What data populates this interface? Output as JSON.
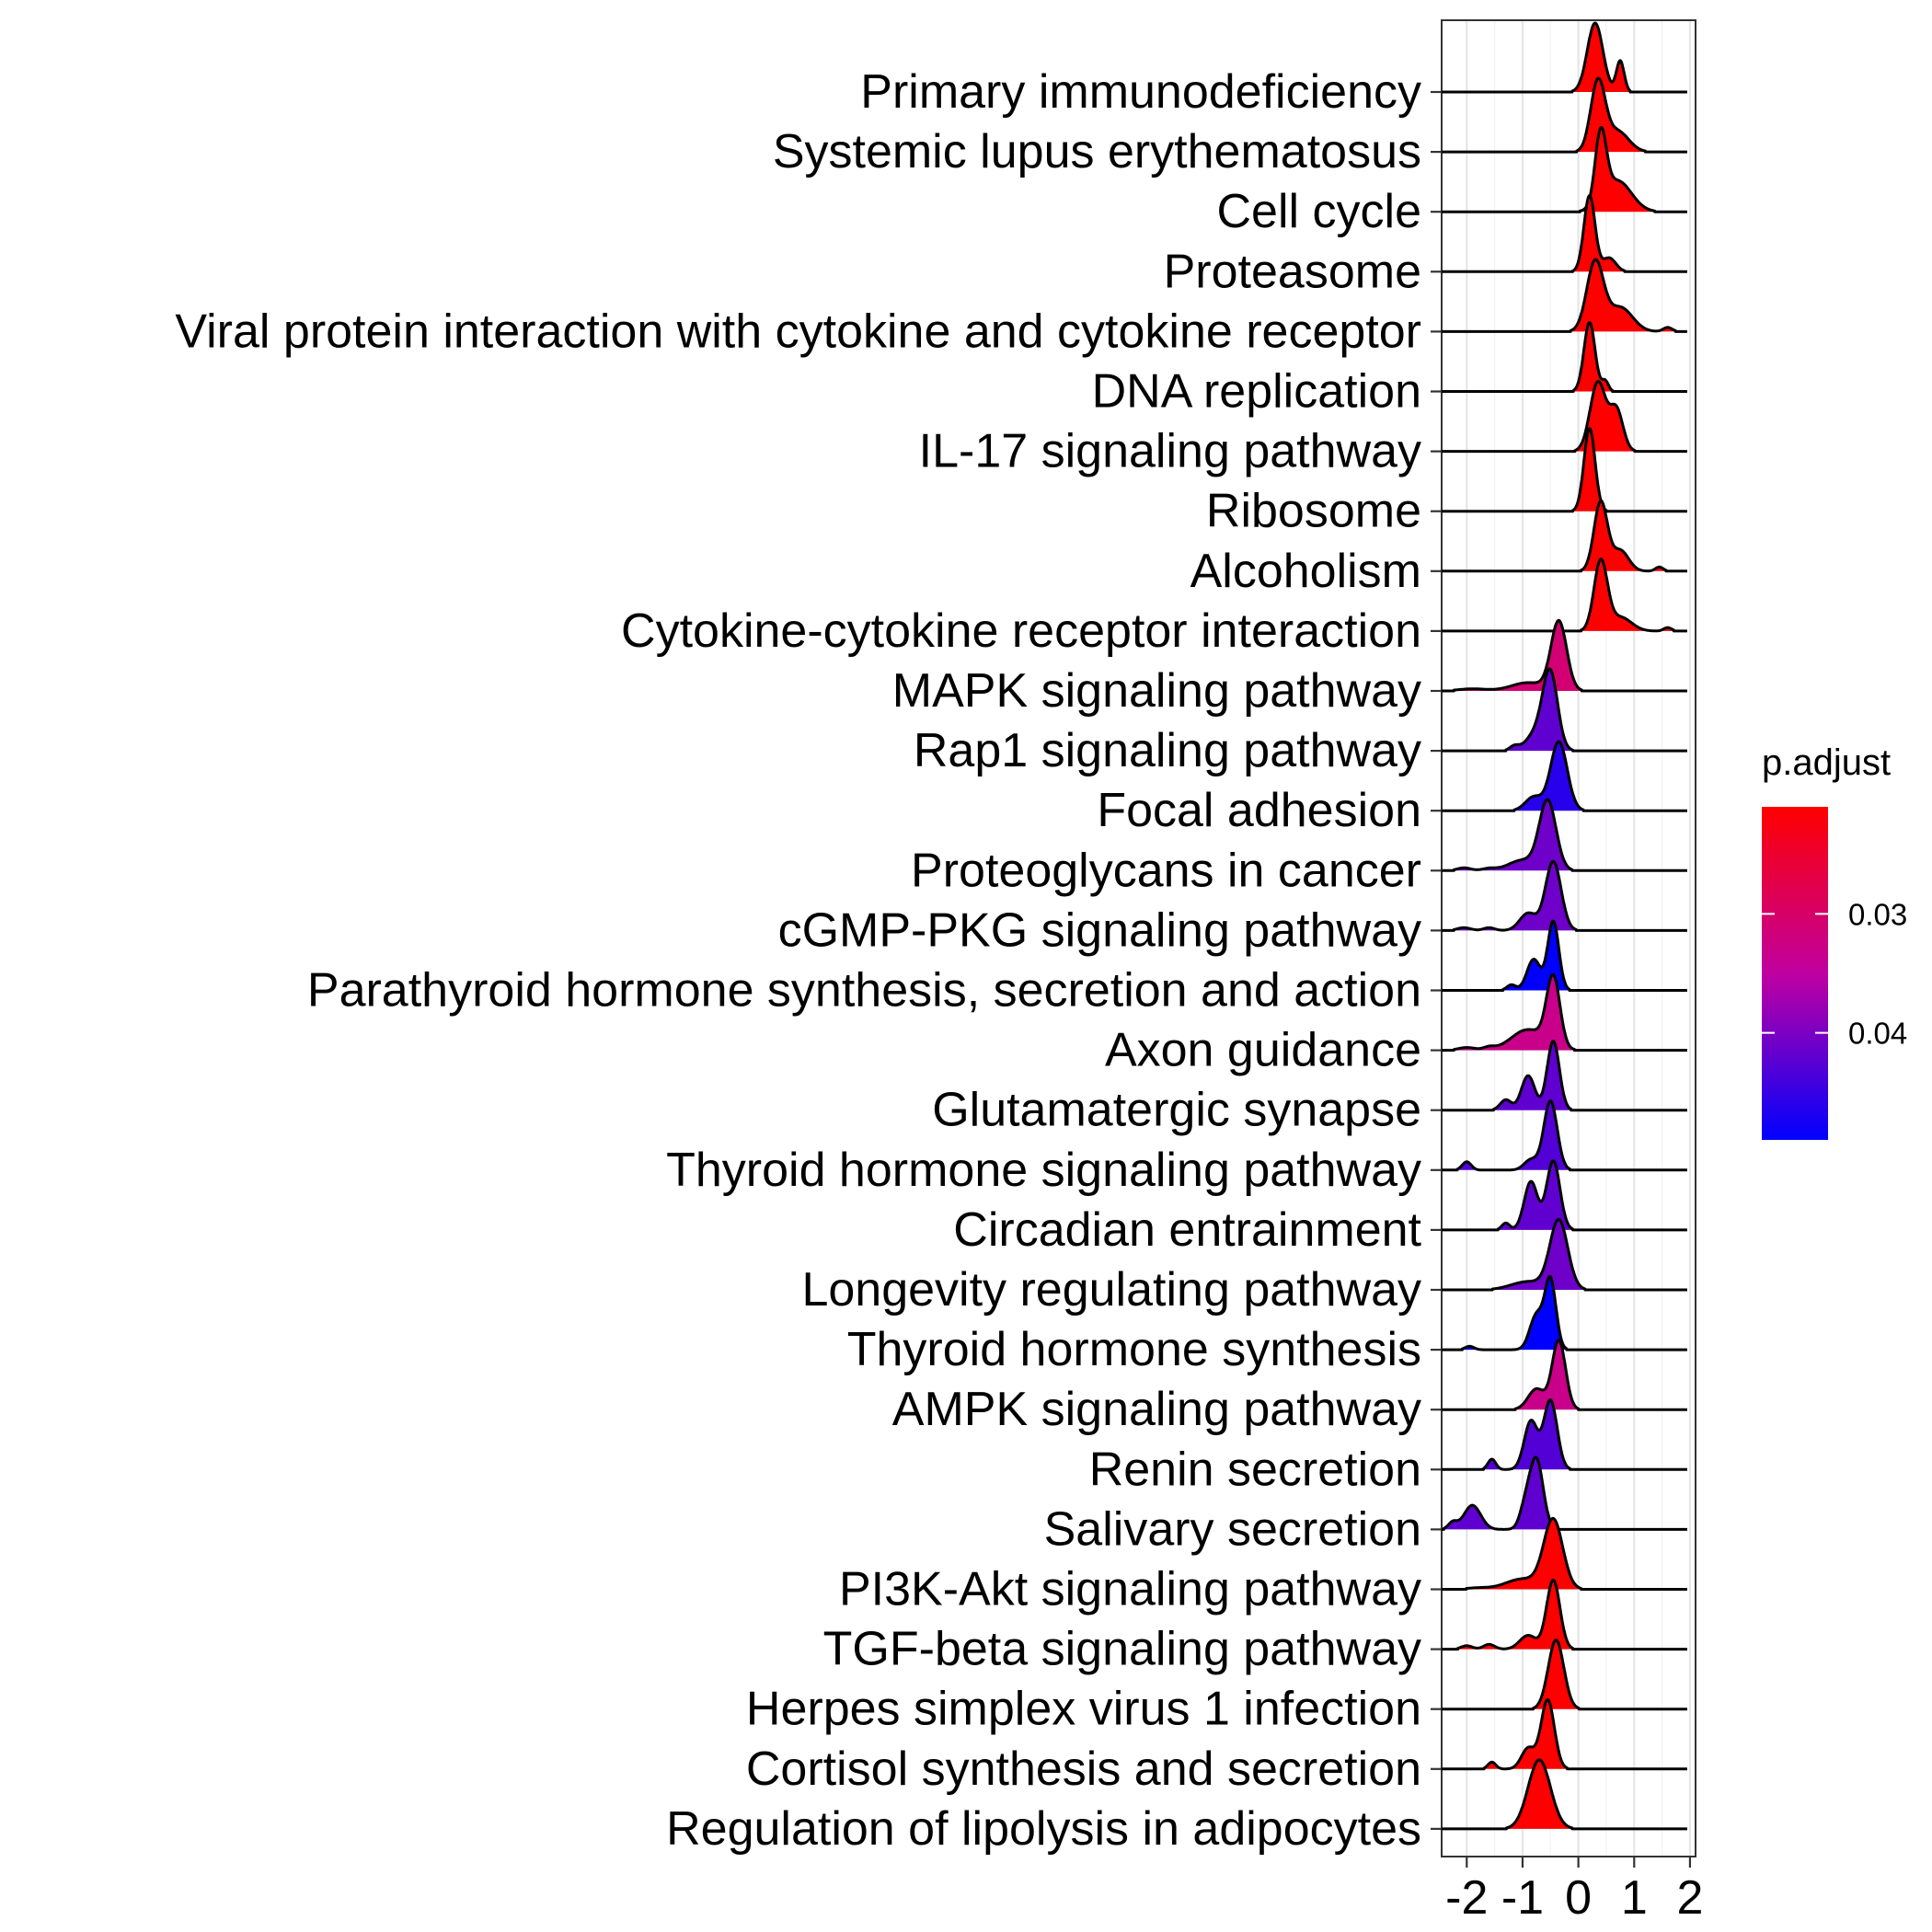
{
  "chart_data": {
    "type": "ridgeline",
    "title": "",
    "xlabel": "",
    "ylabel": "",
    "xlim": [
      -2.45,
      2.1
    ],
    "x_ticks": [
      -2,
      -1,
      0,
      1,
      2
    ],
    "x_tick_labels": [
      "-2",
      "-1",
      "0",
      "1",
      "2"
    ],
    "grid": true,
    "legend": {
      "title": "p.adjust",
      "position": "right",
      "range": [
        0.021,
        0.049
      ],
      "ticks": [
        0.03,
        0.04
      ],
      "tick_labels": [
        "0.03",
        "0.04"
      ],
      "low_color": "#FF0000",
      "high_color": "#0000FF"
    },
    "series": [
      {
        "name": "Primary immunodeficiency",
        "p_adjust": 0.021,
        "peaks": [
          [
            0.3,
            0.14,
            1.0
          ],
          [
            0.75,
            0.07,
            0.45
          ]
        ]
      },
      {
        "name": "Systemic lupus erythematosus",
        "p_adjust": 0.021,
        "peaks": [
          [
            0.35,
            0.13,
            1.0
          ],
          [
            0.7,
            0.2,
            0.3
          ]
        ]
      },
      {
        "name": "Cell cycle",
        "p_adjust": 0.021,
        "peaks": [
          [
            0.4,
            0.1,
            1.0
          ],
          [
            0.7,
            0.25,
            0.45
          ]
        ]
      },
      {
        "name": "Proteasome",
        "p_adjust": 0.021,
        "peaks": [
          [
            0.2,
            0.1,
            1.1
          ],
          [
            0.55,
            0.12,
            0.2
          ]
        ]
      },
      {
        "name": "Viral protein interaction with cytokine and cytokine receptor",
        "p_adjust": 0.021,
        "peaks": [
          [
            0.3,
            0.15,
            1.0
          ],
          [
            0.75,
            0.22,
            0.35
          ],
          [
            1.6,
            0.08,
            0.06
          ]
        ]
      },
      {
        "name": "DNA replication",
        "p_adjust": 0.021,
        "peaks": [
          [
            0.2,
            0.1,
            1.0
          ],
          [
            0.48,
            0.06,
            0.15
          ]
        ]
      },
      {
        "name": "IL-17 signaling pathway",
        "p_adjust": 0.021,
        "peaks": [
          [
            0.35,
            0.14,
            1.0
          ],
          [
            0.68,
            0.12,
            0.6
          ]
        ]
      },
      {
        "name": "Ribosome",
        "p_adjust": 0.021,
        "peaks": [
          [
            0.2,
            0.1,
            1.2
          ]
        ]
      },
      {
        "name": "Alcoholism",
        "p_adjust": 0.021,
        "peaks": [
          [
            0.4,
            0.12,
            1.0
          ],
          [
            0.75,
            0.15,
            0.3
          ],
          [
            1.45,
            0.07,
            0.06
          ]
        ]
      },
      {
        "name": "Cytokine-cytokine receptor interaction",
        "p_adjust": 0.021,
        "peaks": [
          [
            0.4,
            0.12,
            1.0
          ],
          [
            0.75,
            0.2,
            0.2
          ],
          [
            1.6,
            0.07,
            0.05
          ]
        ]
      },
      {
        "name": "MAPK signaling pathway",
        "p_adjust": 0.031,
        "peaks": [
          [
            -0.35,
            0.14,
            1.0
          ],
          [
            -0.9,
            0.3,
            0.12
          ],
          [
            -1.9,
            0.25,
            0.03
          ]
        ]
      },
      {
        "name": "Rap1 signaling pathway",
        "p_adjust": 0.042,
        "peaks": [
          [
            -0.5,
            0.13,
            1.0
          ],
          [
            -0.7,
            0.2,
            0.3
          ],
          [
            -1.15,
            0.08,
            0.06
          ]
        ]
      },
      {
        "name": "Focal adhesion",
        "p_adjust": 0.046,
        "peaks": [
          [
            -0.35,
            0.15,
            1.0
          ],
          [
            -0.8,
            0.15,
            0.2
          ]
        ]
      },
      {
        "name": "Proteoglycans in cancer",
        "p_adjust": 0.041,
        "peaks": [
          [
            -0.55,
            0.15,
            1.0
          ],
          [
            -1.0,
            0.25,
            0.15
          ],
          [
            -2.05,
            0.12,
            0.04
          ],
          [
            -1.6,
            0.12,
            0.03
          ]
        ]
      },
      {
        "name": "cGMP-PKG signaling pathway",
        "p_adjust": 0.041,
        "peaks": [
          [
            -0.45,
            0.14,
            1.0
          ],
          [
            -0.9,
            0.15,
            0.25
          ],
          [
            -2.05,
            0.12,
            0.04
          ],
          [
            -1.6,
            0.1,
            0.04
          ]
        ]
      },
      {
        "name": "Parathyroid hormone synthesis, secretion and action",
        "p_adjust": 0.049,
        "peaks": [
          [
            -0.45,
            0.1,
            1.0
          ],
          [
            -0.8,
            0.12,
            0.45
          ],
          [
            -1.2,
            0.08,
            0.08
          ]
        ]
      },
      {
        "name": "Axon guidance",
        "p_adjust": 0.033,
        "peaks": [
          [
            -0.45,
            0.12,
            1.0
          ],
          [
            -0.9,
            0.3,
            0.3
          ],
          [
            -1.6,
            0.1,
            0.04
          ],
          [
            -2.0,
            0.15,
            0.04
          ]
        ]
      },
      {
        "name": "Glutamatergic synapse",
        "p_adjust": 0.042,
        "peaks": [
          [
            -0.45,
            0.11,
            1.0
          ],
          [
            -0.9,
            0.12,
            0.5
          ],
          [
            -1.3,
            0.1,
            0.15
          ]
        ]
      },
      {
        "name": "Thyroid hormone signaling pathway",
        "p_adjust": 0.043,
        "peaks": [
          [
            -0.5,
            0.12,
            1.0
          ],
          [
            -0.85,
            0.12,
            0.15
          ],
          [
            -2.0,
            0.08,
            0.12
          ]
        ]
      },
      {
        "name": "Circadian entrainment",
        "p_adjust": 0.042,
        "peaks": [
          [
            -0.45,
            0.12,
            1.0
          ],
          [
            -0.85,
            0.12,
            0.7
          ],
          [
            -1.3,
            0.07,
            0.1
          ]
        ]
      },
      {
        "name": "Longevity regulating pathway",
        "p_adjust": 0.041,
        "peaks": [
          [
            -0.35,
            0.16,
            1.0
          ],
          [
            -0.9,
            0.3,
            0.12
          ]
        ]
      },
      {
        "name": "Thyroid hormone synthesis",
        "p_adjust": 0.049,
        "peaks": [
          [
            -0.5,
            0.1,
            1.0
          ],
          [
            -0.75,
            0.12,
            0.5
          ],
          [
            -1.95,
            0.08,
            0.05
          ]
        ]
      },
      {
        "name": "AMPK signaling pathway",
        "p_adjust": 0.033,
        "peaks": [
          [
            -0.35,
            0.12,
            1.0
          ],
          [
            -0.75,
            0.15,
            0.3
          ]
        ]
      },
      {
        "name": "Renin secretion",
        "p_adjust": 0.043,
        "peaks": [
          [
            -0.5,
            0.12,
            1.0
          ],
          [
            -0.85,
            0.12,
            0.7
          ],
          [
            -1.55,
            0.07,
            0.15
          ]
        ]
      },
      {
        "name": "Salivary secretion",
        "p_adjust": 0.042,
        "peaks": [
          [
            -0.75,
            0.12,
            1.0
          ],
          [
            -0.95,
            0.1,
            0.3
          ],
          [
            -1.9,
            0.15,
            0.35
          ],
          [
            -2.25,
            0.08,
            0.1
          ]
        ]
      },
      {
        "name": "PI3K-Akt signaling pathway",
        "p_adjust": 0.021,
        "peaks": [
          [
            -0.45,
            0.17,
            1.0
          ],
          [
            -1.0,
            0.3,
            0.15
          ],
          [
            -1.8,
            0.2,
            0.02
          ]
        ]
      },
      {
        "name": "TGF-beta signaling pathway",
        "p_adjust": 0.021,
        "peaks": [
          [
            -0.45,
            0.12,
            1.0
          ],
          [
            -0.9,
            0.15,
            0.2
          ],
          [
            -1.6,
            0.1,
            0.07
          ],
          [
            -2.0,
            0.1,
            0.05
          ]
        ]
      },
      {
        "name": "Herpes simplex virus 1 infection",
        "p_adjust": 0.021,
        "peaks": [
          [
            -0.4,
            0.14,
            1.0
          ]
        ]
      },
      {
        "name": "Cortisol synthesis and secretion",
        "p_adjust": 0.021,
        "peaks": [
          [
            -0.55,
            0.12,
            1.0
          ],
          [
            -0.9,
            0.12,
            0.3
          ],
          [
            -1.55,
            0.07,
            0.1
          ]
        ]
      },
      {
        "name": "Regulation of lipolysis in adipocytes",
        "p_adjust": 0.021,
        "peaks": [
          [
            -0.7,
            0.2,
            1.0
          ]
        ]
      }
    ]
  }
}
